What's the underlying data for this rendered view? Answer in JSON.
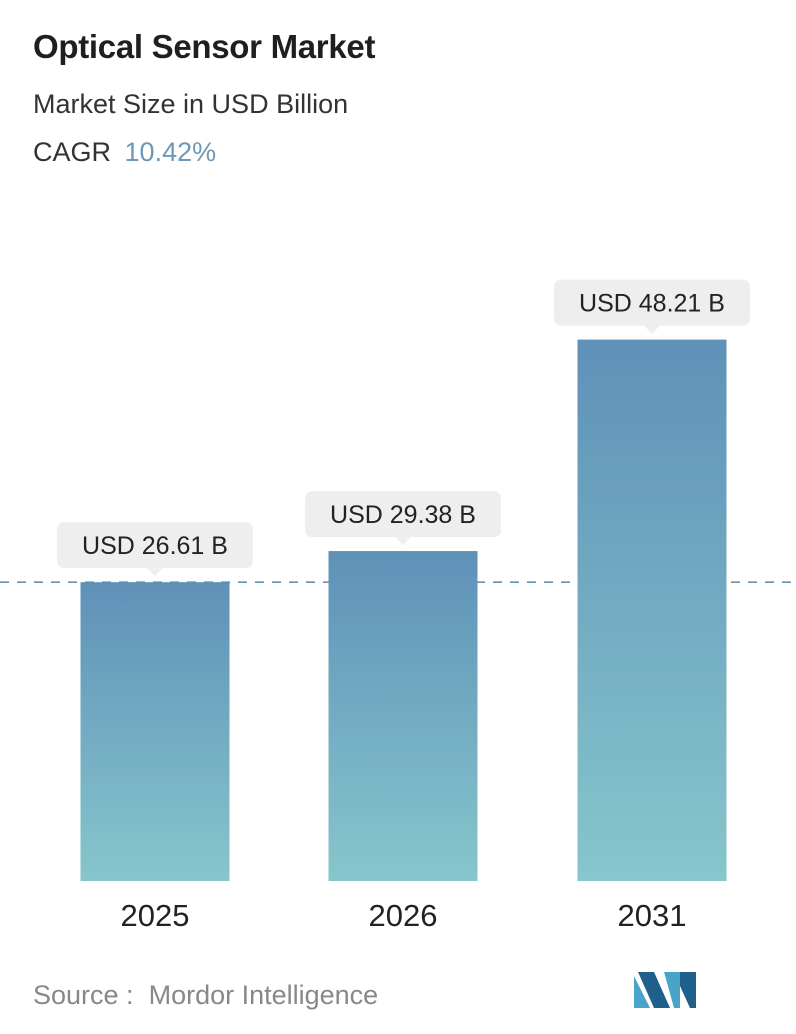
{
  "header": {
    "title": "Optical Sensor Market",
    "subtitle": "Market Size in USD Billion",
    "cagr_label": "CAGR",
    "cagr_value": "10.42%"
  },
  "chart_data": {
    "type": "bar",
    "categories": [
      "2025",
      "2026",
      "2031"
    ],
    "values": [
      26.61,
      29.38,
      48.21
    ],
    "value_labels": [
      "USD 26.61 B",
      "USD 29.38 B",
      "USD 48.21 B"
    ],
    "reference_line_value": 26.61,
    "grid": false,
    "colors": {
      "bar_top": "#5f91b8",
      "bar_bottom": "#86c6cc",
      "label_bg": "#eeeeee",
      "reference_line": "#6e8fa8"
    }
  },
  "footer": {
    "source_label": "Source :",
    "source_name": "Mordor Intelligence",
    "logo_icon": "mordor-intelligence-logo-icon"
  }
}
